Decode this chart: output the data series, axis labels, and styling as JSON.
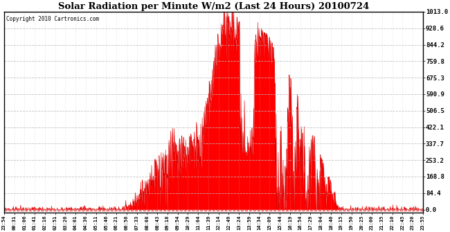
{
  "title": "Solar Radiation per Minute W/m2 (Last 24 Hours) 20100724",
  "copyright_text": "Copyright 2010 Cartronics.com",
  "y_ticks": [
    0.0,
    84.4,
    168.8,
    253.2,
    337.7,
    422.1,
    506.5,
    590.9,
    675.3,
    759.8,
    844.2,
    928.6,
    1013.0
  ],
  "y_min": 0,
  "y_max": 1013.0,
  "fill_color": "#ff0000",
  "line_color": "#dd0000",
  "bg_color": "#ffffff",
  "grid_color": "#bbbbbb",
  "dashed_line_y": -5,
  "x_labels": [
    "23:54",
    "00:31",
    "01:06",
    "01:41",
    "02:16",
    "02:51",
    "03:26",
    "04:01",
    "04:36",
    "05:11",
    "05:46",
    "06:21",
    "06:56",
    "07:33",
    "08:08",
    "08:43",
    "09:18",
    "09:54",
    "10:29",
    "11:04",
    "11:39",
    "12:14",
    "12:49",
    "13:24",
    "13:59",
    "14:34",
    "15:09",
    "15:44",
    "16:19",
    "16:54",
    "17:29",
    "18:04",
    "18:40",
    "19:15",
    "19:50",
    "20:25",
    "21:00",
    "21:35",
    "22:10",
    "22:45",
    "23:20",
    "23:55"
  ],
  "n_points": 1440,
  "sunrise_idx": 395,
  "sunset_idx": 1155,
  "peak_max": 1013.0
}
